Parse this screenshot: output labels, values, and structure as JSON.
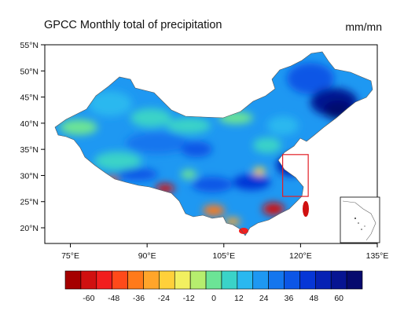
{
  "title": "GPCC Monthly total of precipitation",
  "units": "mm/mn",
  "map": {
    "lon_range": [
      70,
      135
    ],
    "lat_range": [
      17,
      55
    ],
    "lon_ticks": [
      {
        "value": 75,
        "label": "75°E"
      },
      {
        "value": 90,
        "label": "90°E"
      },
      {
        "value": 105,
        "label": "105°E"
      },
      {
        "value": 120,
        "label": "120°E"
      },
      {
        "value": 135,
        "label": "135°E"
      }
    ],
    "lat_ticks": [
      {
        "value": 20,
        "label": "20°N"
      },
      {
        "value": 25,
        "label": "25°N"
      },
      {
        "value": 30,
        "label": "30°N"
      },
      {
        "value": 35,
        "label": "35°N"
      },
      {
        "value": 40,
        "label": "40°N"
      },
      {
        "value": 45,
        "label": "45°N"
      },
      {
        "value": 50,
        "label": "50°N"
      },
      {
        "value": 55,
        "label": "55°N"
      }
    ],
    "highlight_box": {
      "lon": [
        116.5,
        121.5
      ],
      "lat": [
        26,
        34
      ],
      "color": "#e21f26"
    },
    "inset": {
      "description_visible": false
    }
  },
  "colorbar": {
    "colors": [
      "#a50000",
      "#d01010",
      "#f21e1e",
      "#ff4a1a",
      "#ff7a1a",
      "#ffa52a",
      "#ffd03a",
      "#f2f060",
      "#b6ee6e",
      "#6ce496",
      "#3ad3c8",
      "#2ab8ef",
      "#1e98f2",
      "#1476ee",
      "#0c56e6",
      "#0636d6",
      "#0622b4",
      "#061492",
      "#060a6e"
    ],
    "labels": [
      {
        "value": -60,
        "label": "-60"
      },
      {
        "value": -48,
        "label": "-48"
      },
      {
        "value": -36,
        "label": "-36"
      },
      {
        "value": -24,
        "label": "-24"
      },
      {
        "value": -12,
        "label": "-12"
      },
      {
        "value": 0,
        "label": "0"
      },
      {
        "value": 12,
        "label": "12"
      },
      {
        "value": 24,
        "label": "24"
      },
      {
        "value": 36,
        "label": "36"
      },
      {
        "value": 48,
        "label": "48"
      },
      {
        "value": 60,
        "label": "60"
      }
    ]
  }
}
